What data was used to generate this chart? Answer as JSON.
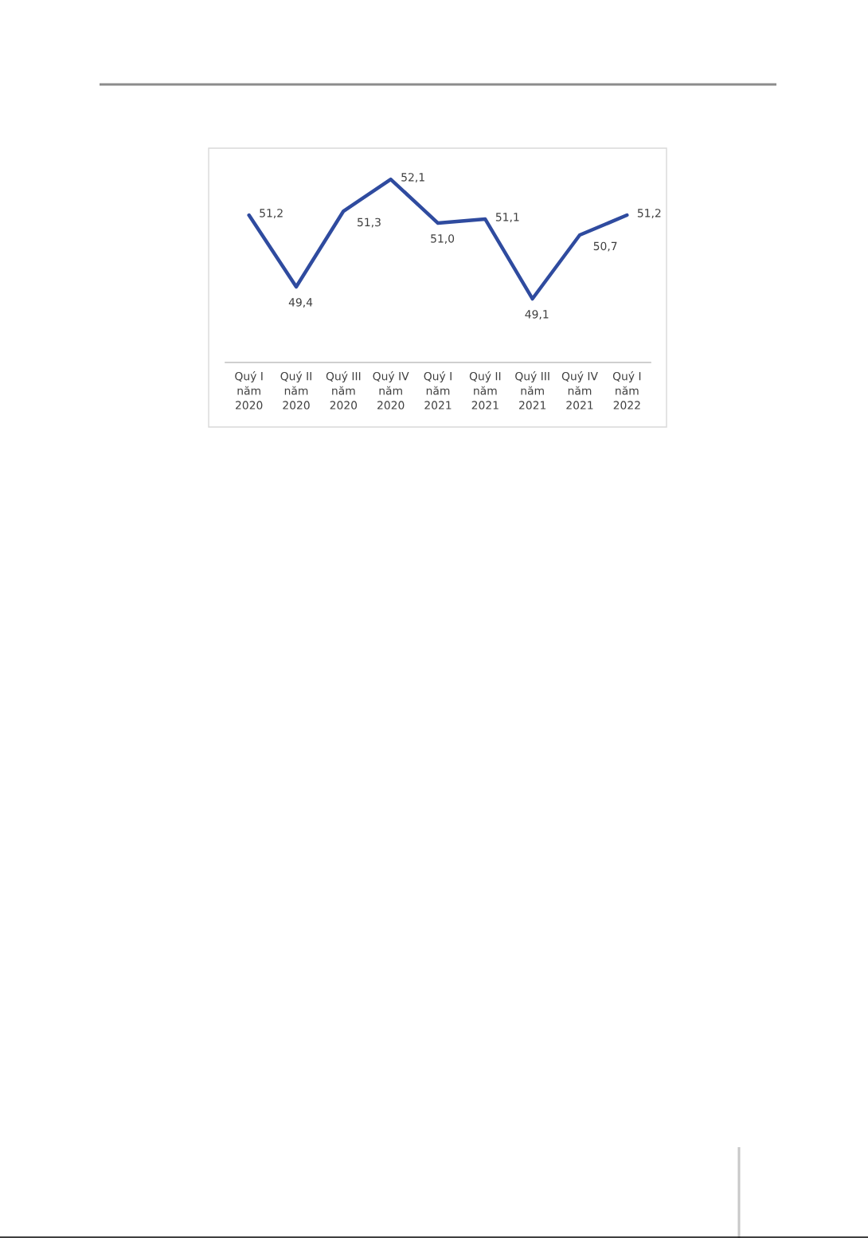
{
  "chart_data": {
    "type": "line",
    "categories": [
      "Quý I\nnăm\n2020",
      "Quý II\nnăm\n2020",
      "Quý III\nnăm\n2020",
      "Quý IV\nnăm\n2020",
      "Quý I\nnăm\n2021",
      "Quý II\nnăm\n2021",
      "Quý III\nnăm\n2021",
      "Quý IV\nnăm\n2021",
      "Quý I\nnăm\n2022"
    ],
    "series": [
      {
        "color": "#2f4b9f",
        "values": [
          51.2,
          49.4,
          51.3,
          52.1,
          51.0,
          51.1,
          49.1,
          50.7,
          51.2
        ],
        "value_labels": [
          "51,2",
          "49,4",
          "51,3",
          "52,1",
          "51,0",
          "51,1",
          "49,1",
          "50,7",
          "51,2"
        ]
      }
    ],
    "marker": "none",
    "line_style": "solid",
    "tick_labels": "x"
  }
}
